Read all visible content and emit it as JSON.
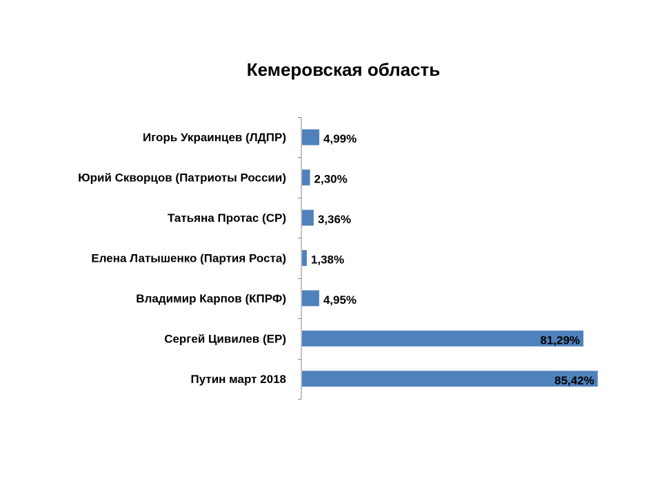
{
  "chart_data": {
    "type": "bar",
    "orientation": "horizontal",
    "title": "Кемеровская область",
    "categories": [
      "Игорь Украинцев (ЛДПР)",
      "Юрий Скворцов (Патриоты России)",
      "Татьяна Протас (СР)",
      "Елена Латышенко (Партия Роста)",
      "Владимир Карпов (КПРФ)",
      "Сергей Цивилев (ЕР)",
      "Путин март 2018"
    ],
    "values": [
      4.99,
      2.3,
      3.36,
      1.38,
      4.95,
      81.29,
      85.42
    ],
    "value_labels": [
      "4,99%",
      "2,30%",
      "3,36%",
      "1,38%",
      "4,95%",
      "81,29%",
      "85,42%"
    ],
    "bar_color": "#4F81BD",
    "xlim": [
      0,
      100
    ],
    "grid": false,
    "legend": "none",
    "xlabel": "",
    "ylabel": ""
  }
}
